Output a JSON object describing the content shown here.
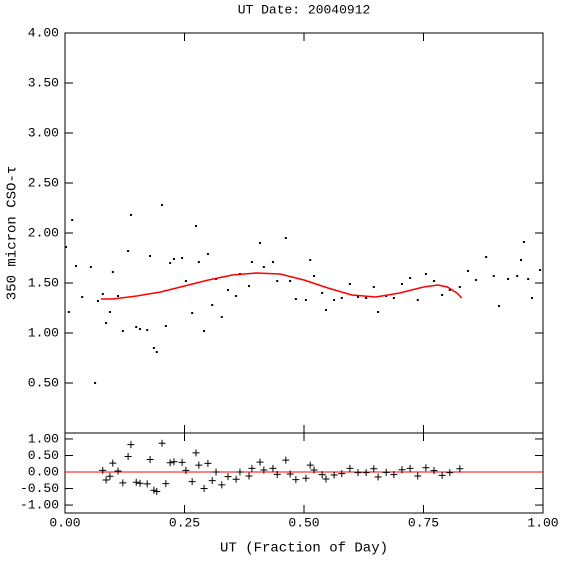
{
  "chart_data": [
    {
      "type": "scatter",
      "title": "UT Date: 20040912",
      "ylabel": "350 micron CSO-τ",
      "xlim": [
        0,
        1
      ],
      "ylim": [
        0,
        4
      ],
      "xticks": [
        0,
        0.25,
        0.5,
        0.75,
        1
      ],
      "xtick_labels": false,
      "yticks": [
        {
          "value": 0.5,
          "label": "0.50"
        },
        {
          "value": 1,
          "label": "1.00"
        },
        {
          "value": 1.5,
          "label": "1.50"
        },
        {
          "value": 2,
          "label": "2.00"
        },
        {
          "value": 2.5,
          "label": "2.50"
        },
        {
          "value": 3,
          "label": "3.00"
        },
        {
          "value": 3.5,
          "label": "3.50"
        },
        {
          "value": 4,
          "label": "4.00"
        }
      ],
      "series": [
        {
          "type": "scatter",
          "marker": "dot",
          "color": "#000000",
          "x": [
            0.002,
            0.008,
            0.015,
            0.023,
            0.036,
            0.054,
            0.063,
            0.069,
            0.079,
            0.086,
            0.094,
            0.1,
            0.111,
            0.121,
            0.132,
            0.138,
            0.149,
            0.157,
            0.172,
            0.178,
            0.186,
            0.192,
            0.203,
            0.211,
            0.22,
            0.228,
            0.245,
            0.253,
            0.266,
            0.274,
            0.28,
            0.291,
            0.299,
            0.308,
            0.316,
            0.328,
            0.341,
            0.358,
            0.366,
            0.385,
            0.391,
            0.408,
            0.416,
            0.435,
            0.444,
            0.462,
            0.471,
            0.483,
            0.504,
            0.513,
            0.521,
            0.538,
            0.546,
            0.563,
            0.579,
            0.596,
            0.613,
            0.63,
            0.646,
            0.655,
            0.672,
            0.688,
            0.705,
            0.722,
            0.738,
            0.755,
            0.772,
            0.789,
            0.805,
            0.826,
            0.843,
            0.86,
            0.881,
            0.897,
            0.908,
            0.927,
            0.946,
            0.954,
            0.96,
            0.969,
            0.977,
            0.994
          ],
          "values": [
            1.86,
            1.21,
            2.13,
            1.67,
            1.36,
            1.66,
            0.5,
            1.32,
            1.39,
            1.1,
            1.21,
            1.61,
            1.37,
            1.02,
            1.82,
            2.18,
            1.06,
            1.04,
            1.03,
            1.77,
            0.85,
            0.81,
            2.28,
            1.07,
            1.7,
            1.74,
            1.75,
            1.52,
            1.2,
            2.07,
            1.71,
            1.02,
            1.79,
            1.28,
            1.54,
            1.16,
            1.43,
            1.37,
            1.59,
            1.47,
            1.71,
            1.9,
            1.66,
            1.71,
            1.52,
            1.95,
            1.52,
            1.34,
            1.33,
            1.73,
            1.57,
            1.4,
            1.23,
            1.33,
            1.35,
            1.49,
            1.36,
            1.35,
            1.46,
            1.21,
            1.37,
            1.35,
            1.49,
            1.55,
            1.33,
            1.59,
            1.52,
            1.38,
            1.43,
            1.46,
            1.62,
            1.53,
            1.76,
            1.57,
            1.27,
            1.54,
            1.57,
            1.73,
            1.91,
            1.54,
            1.35,
            1.63
          ]
        },
        {
          "type": "line",
          "color": "#ff0000",
          "x": [
            0.075,
            0.1,
            0.15,
            0.2,
            0.25,
            0.3,
            0.35,
            0.4,
            0.45,
            0.5,
            0.55,
            0.6,
            0.65,
            0.7,
            0.75,
            0.78,
            0.8,
            0.82,
            0.83
          ],
          "values": [
            1.34,
            1.34,
            1.37,
            1.41,
            1.47,
            1.53,
            1.58,
            1.6,
            1.59,
            1.53,
            1.45,
            1.38,
            1.36,
            1.4,
            1.46,
            1.48,
            1.46,
            1.4,
            1.35
          ]
        }
      ]
    },
    {
      "type": "scatter",
      "xlabel": "UT (Fraction of Day)",
      "xlim": [
        0,
        1
      ],
      "ylim": [
        -1.24,
        1.18
      ],
      "xticks": [
        {
          "value": 0,
          "label": "0.00"
        },
        {
          "value": 0.25,
          "label": "0.25"
        },
        {
          "value": 0.5,
          "label": "0.50"
        },
        {
          "value": 0.75,
          "label": "0.75"
        },
        {
          "value": 1,
          "label": "1.00"
        }
      ],
      "yticks": [
        {
          "value": -1,
          "label": "-1.00"
        },
        {
          "value": -0.5,
          "label": "-0.50"
        },
        {
          "value": 0,
          "label": "0.00"
        },
        {
          "value": 0.5,
          "label": "0.50"
        },
        {
          "value": 1,
          "label": "1.00"
        }
      ],
      "hline": {
        "value": 0,
        "color": "#ff0000"
      },
      "series": [
        {
          "type": "scatter",
          "marker": "plus",
          "color": "#000000",
          "x": [
            0.079,
            0.086,
            0.094,
            0.1,
            0.111,
            0.121,
            0.132,
            0.138,
            0.149,
            0.157,
            0.172,
            0.178,
            0.186,
            0.192,
            0.203,
            0.211,
            0.22,
            0.228,
            0.245,
            0.253,
            0.266,
            0.274,
            0.28,
            0.291,
            0.299,
            0.308,
            0.316,
            0.328,
            0.341,
            0.358,
            0.366,
            0.385,
            0.391,
            0.408,
            0.416,
            0.435,
            0.444,
            0.462,
            0.471,
            0.483,
            0.504,
            0.513,
            0.521,
            0.538,
            0.546,
            0.563,
            0.579,
            0.596,
            0.613,
            0.63,
            0.646,
            0.655,
            0.672,
            0.688,
            0.705,
            0.722,
            0.738,
            0.755,
            0.772,
            0.789,
            0.805,
            0.826
          ],
          "values": [
            0.05,
            -0.24,
            -0.13,
            0.27,
            0.03,
            -0.33,
            0.47,
            0.83,
            -0.31,
            -0.34,
            -0.36,
            0.38,
            -0.55,
            -0.59,
            0.87,
            -0.35,
            0.28,
            0.31,
            0.29,
            0.05,
            -0.29,
            0.58,
            0.21,
            -0.5,
            0.26,
            -0.26,
            0.0,
            -0.39,
            -0.14,
            -0.22,
            0.0,
            -0.12,
            0.11,
            0.3,
            0.06,
            0.11,
            -0.07,
            0.36,
            -0.06,
            -0.23,
            -0.19,
            0.21,
            0.06,
            -0.08,
            -0.21,
            -0.09,
            -0.05,
            0.11,
            -0.02,
            -0.02,
            0.1,
            -0.15,
            -0.01,
            -0.08,
            0.07,
            0.11,
            -0.12,
            0.13,
            0.04,
            -0.1,
            -0.02,
            0.1
          ]
        }
      ]
    }
  ]
}
